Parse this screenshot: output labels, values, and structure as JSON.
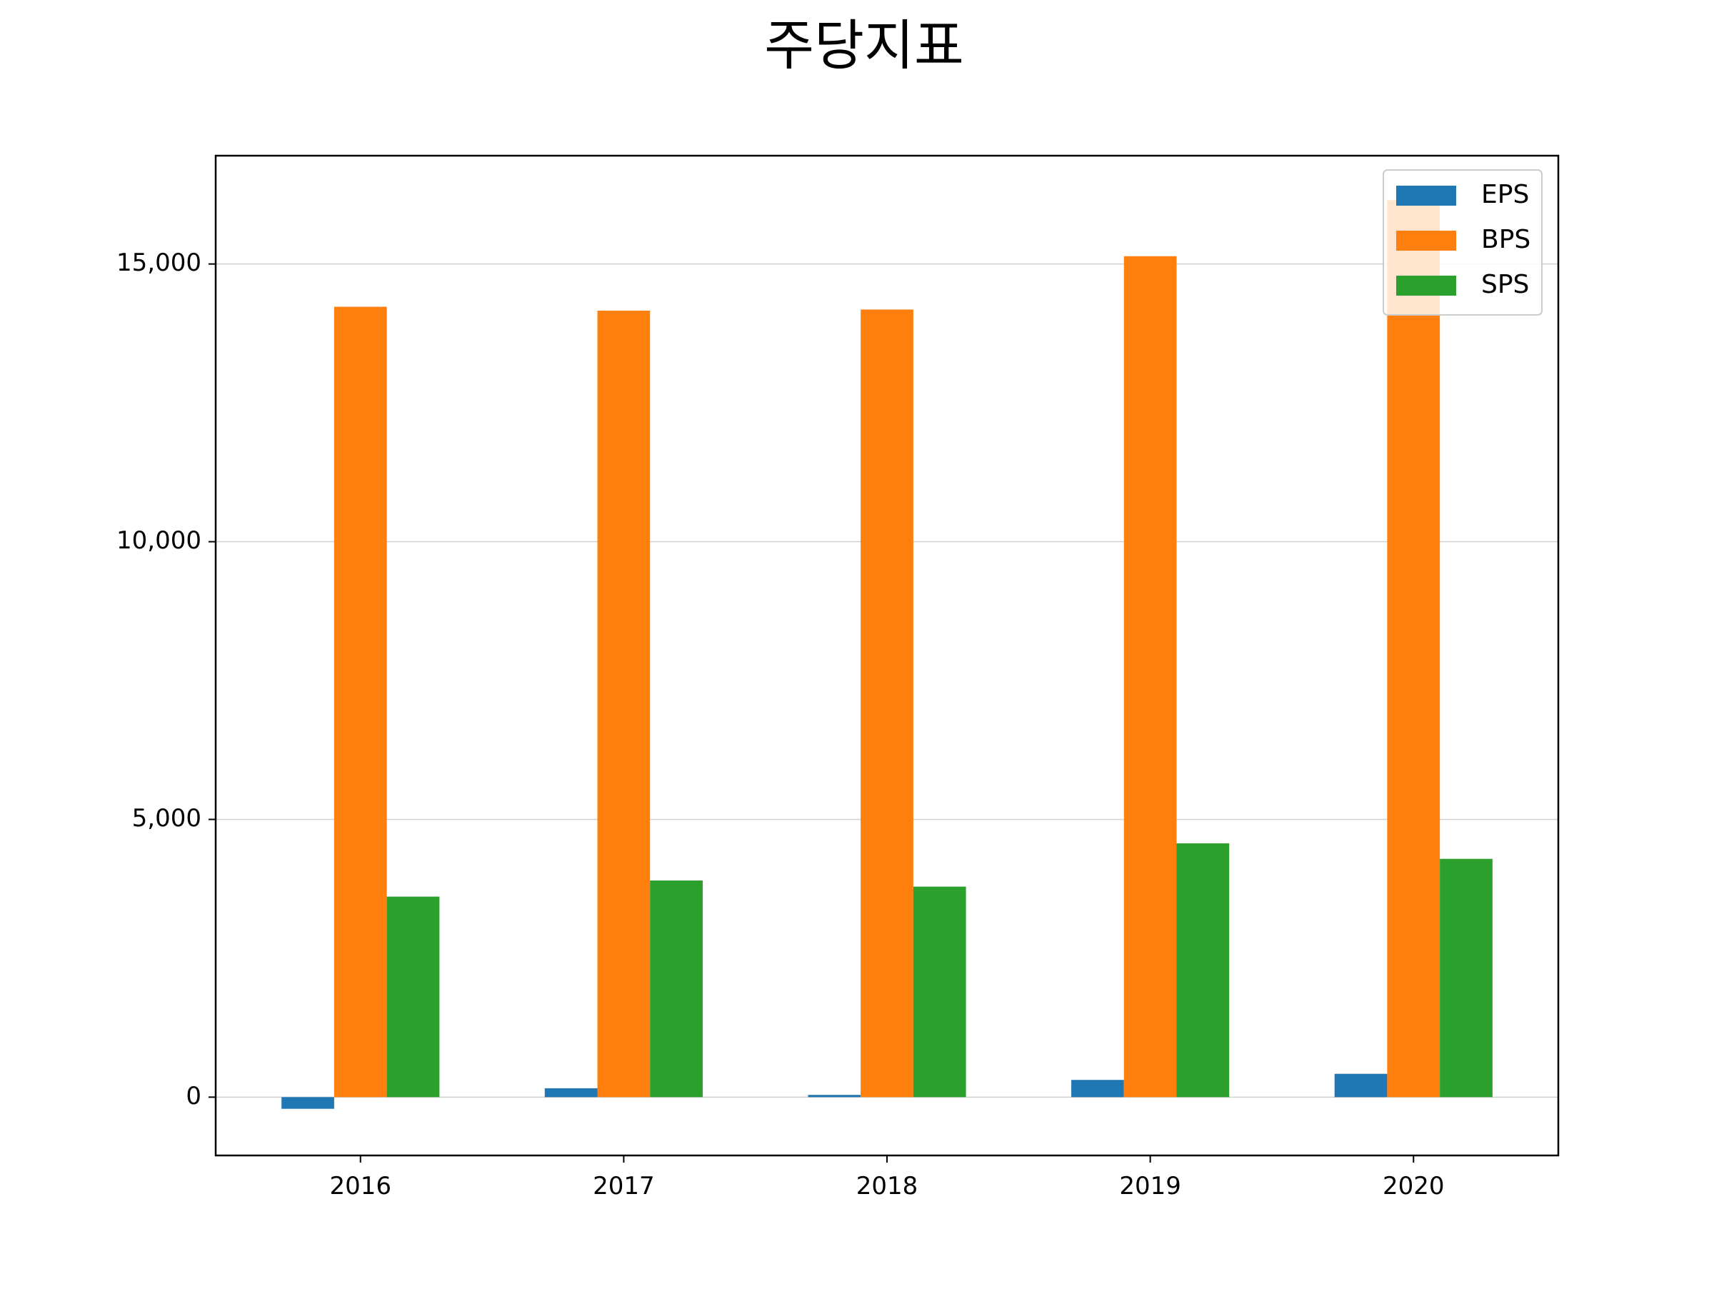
{
  "chart_data": {
    "type": "bar",
    "title": "주당지표",
    "xlabel": "",
    "ylabel": "",
    "categories": [
      "2016",
      "2017",
      "2018",
      "2019",
      "2020"
    ],
    "series": [
      {
        "name": "EPS",
        "color": "#1f77b4",
        "values": [
          -210,
          160,
          40,
          310,
          420
        ]
      },
      {
        "name": "BPS",
        "color": "#ff7f0e",
        "values": [
          14230,
          14160,
          14180,
          15140,
          16150
        ]
      },
      {
        "name": "SPS",
        "color": "#2ca02c",
        "values": [
          3610,
          3900,
          3790,
          4570,
          4290
        ]
      }
    ],
    "ylim": [
      -1050,
      16950
    ],
    "yticks": [
      0,
      5000,
      10000,
      15000
    ],
    "ytick_labels": [
      "0",
      "5,000",
      "10,000",
      "15,000"
    ],
    "grid": "horizontal",
    "legend_position": "top-right"
  }
}
